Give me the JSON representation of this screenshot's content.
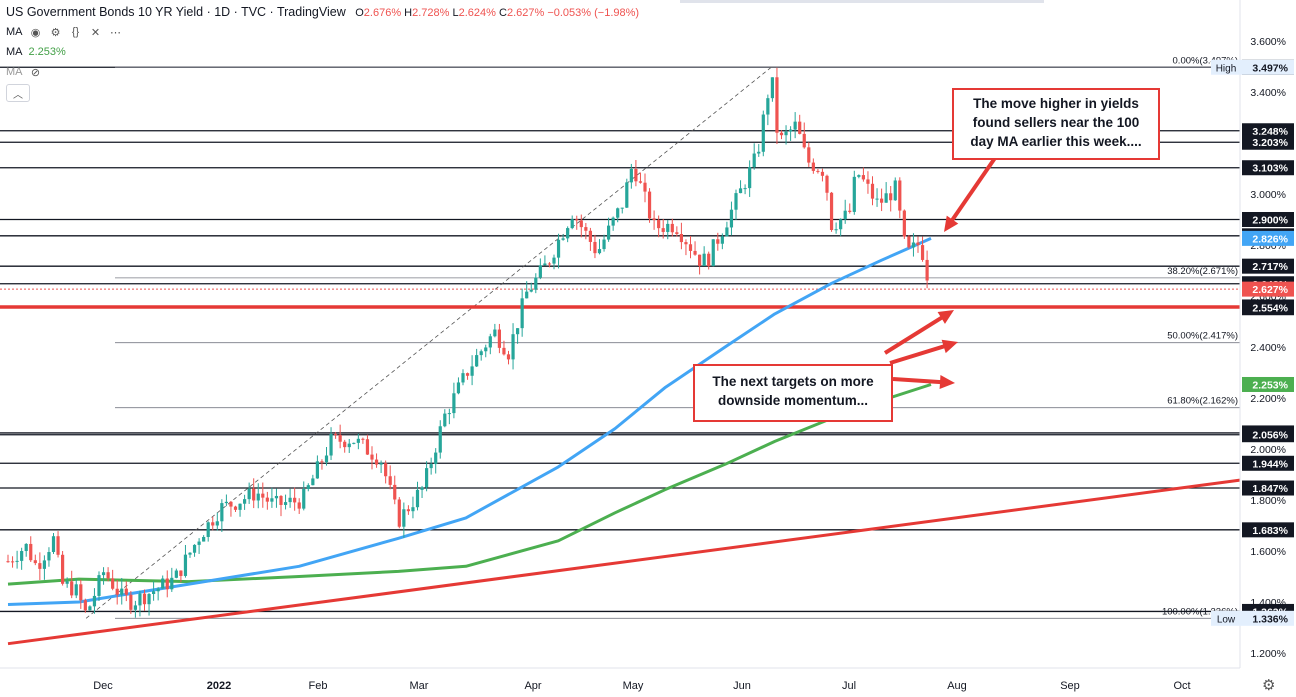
{
  "header": {
    "title": "US Government Bonds 10 YR Yield · 1D · TVC · TradingView",
    "ohlc": [
      {
        "k": "O",
        "v": "2.676%"
      },
      {
        "k": "H",
        "v": "2.728%"
      },
      {
        "k": "L",
        "v": "2.624%"
      },
      {
        "k": "C",
        "v": "2.627%"
      },
      {
        "k": "",
        "v": "−0.053%"
      },
      {
        "k": "",
        "v": "(−1.98%)"
      }
    ],
    "ma1_label": "MA",
    "ma2_label": "MA",
    "ma2_value": "2.253%",
    "ma3_label": "MA",
    "icons": [
      "eye-icon",
      "gear-icon",
      "braces-icon",
      "close-icon",
      "more-icon"
    ]
  },
  "callouts": {
    "top": "The move higher in yields found sellers near the 100 day MA earlier this week....",
    "bottom": "The next targets on more downside momentum..."
  },
  "colors": {
    "up": "#26a69a",
    "down": "#ef5350",
    "ma100": "#42a5f5",
    "ma200": "#4caf50",
    "trend": "#e53935",
    "annotation": "#e53935"
  },
  "chart_data": {
    "type": "candlestick",
    "title": "US Government Bonds 10 YR Yield",
    "ylim": [
      1.15,
      3.65
    ],
    "y_ticks": [
      "1.200%",
      "1.400%",
      "1.600%",
      "1.800%",
      "2.000%",
      "2.200%",
      "2.400%",
      "2.600%",
      "2.800%",
      "3.000%",
      "3.200%",
      "3.400%",
      "3.600%"
    ],
    "x_ticks": [
      "Dec",
      "2022",
      "Feb",
      "Mar",
      "Apr",
      "May",
      "Jun",
      "Jul",
      "Aug",
      "Sep",
      "Oct"
    ],
    "date_range": [
      "2021-11-11",
      "2022-10-31"
    ],
    "price_levels": [
      {
        "value": 3.497,
        "label": "3.497%",
        "style": "dark"
      },
      {
        "value": 3.248,
        "label": "3.248%",
        "style": "dark"
      },
      {
        "value": 3.203,
        "label": "3.203%",
        "style": "dark"
      },
      {
        "value": 3.103,
        "label": "3.103%",
        "style": "dark"
      },
      {
        "value": 2.9,
        "label": "2.900%",
        "style": "dark"
      },
      {
        "value": 2.836,
        "label": "2.836%",
        "style": "dark"
      },
      {
        "value": 2.717,
        "label": "2.717%",
        "style": "dark"
      },
      {
        "value": 2.648,
        "label": "2.648%",
        "style": "dark"
      },
      {
        "value": 2.557,
        "label": "2.557%",
        "style": "dark"
      },
      {
        "value": 2.554,
        "label": "2.554%",
        "style": "dark"
      },
      {
        "value": 2.063,
        "label": "2.063%",
        "style": "dark"
      },
      {
        "value": 2.056,
        "label": "2.056%",
        "style": "dark"
      },
      {
        "value": 1.944,
        "label": "1.944%",
        "style": "dark"
      },
      {
        "value": 1.847,
        "label": "1.847%",
        "style": "dark"
      },
      {
        "value": 1.683,
        "label": "1.683%",
        "style": "dark"
      },
      {
        "value": 1.363,
        "label": "1.363%",
        "style": "dark"
      }
    ],
    "badges": [
      {
        "value": 3.497,
        "label": "3.497%",
        "side": "High"
      },
      {
        "value": 2.826,
        "label": "2.826%",
        "color": "ma100"
      },
      {
        "value": 2.627,
        "label": "2.627%",
        "color": "down"
      },
      {
        "value": 2.253,
        "label": "2.253%",
        "color": "ma200"
      },
      {
        "value": 1.336,
        "label": "1.336%",
        "side": "Low"
      }
    ],
    "fib_levels": [
      {
        "value": 3.497,
        "label": "0.00%(3.497%)"
      },
      {
        "value": 2.671,
        "label": "38.20%(2.671%)"
      },
      {
        "value": 2.417,
        "label": "50.00%(2.417%)"
      },
      {
        "value": 2.162,
        "label": "61.80%(2.162%)"
      },
      {
        "value": 1.336,
        "label": "100.00%(1.336%)"
      }
    ],
    "support_line": 2.557,
    "current_close": 2.627,
    "trend_line": [
      [
        "2021-11-11",
        1.26
      ],
      [
        "2022-10-31",
        1.87
      ]
    ],
    "fib_diagonal": [
      [
        "2021-12-03",
        1.336
      ],
      [
        "2022-06-14",
        3.497
      ]
    ],
    "path": [
      [
        "2021-11-11",
        1.56
      ],
      [
        "2021-11-16",
        1.62
      ],
      [
        "2021-11-19",
        1.54
      ],
      [
        "2021-11-24",
        1.65
      ],
      [
        "2021-11-26",
        1.47
      ],
      [
        "2021-11-30",
        1.45
      ],
      [
        "2021-12-03",
        1.35
      ],
      [
        "2021-12-08",
        1.52
      ],
      [
        "2021-12-13",
        1.42
      ],
      [
        "2021-12-16",
        1.4
      ],
      [
        "2021-12-20",
        1.43
      ],
      [
        "2021-12-28",
        1.49
      ],
      [
        "2022-01-04",
        1.66
      ],
      [
        "2022-01-10",
        1.77
      ],
      [
        "2022-01-14",
        1.79
      ],
      [
        "2022-01-20",
        1.83
      ],
      [
        "2022-01-25",
        1.78
      ],
      [
        "2022-02-02",
        1.8
      ],
      [
        "2022-02-10",
        2.03
      ],
      [
        "2022-02-16",
        2.04
      ],
      [
        "2022-02-24",
        1.96
      ],
      [
        "2022-03-01",
        1.72
      ],
      [
        "2022-03-08",
        1.85
      ],
      [
        "2022-03-14",
        2.13
      ],
      [
        "2022-03-21",
        2.32
      ],
      [
        "2022-03-28",
        2.46
      ],
      [
        "2022-04-01",
        2.38
      ],
      [
        "2022-04-06",
        2.61
      ],
      [
        "2022-04-12",
        2.73
      ],
      [
        "2022-04-19",
        2.93
      ],
      [
        "2022-04-26",
        2.77
      ],
      [
        "2022-05-03",
        2.96
      ],
      [
        "2022-05-06",
        3.12
      ],
      [
        "2022-05-12",
        2.87
      ],
      [
        "2022-05-18",
        2.88
      ],
      [
        "2022-05-25",
        2.74
      ],
      [
        "2022-05-27",
        2.74
      ],
      [
        "2022-06-03",
        2.94
      ],
      [
        "2022-06-10",
        3.15
      ],
      [
        "2022-06-14",
        3.47
      ],
      [
        "2022-06-16",
        3.2
      ],
      [
        "2022-06-21",
        3.27
      ],
      [
        "2022-06-24",
        3.13
      ],
      [
        "2022-06-29",
        3.09
      ],
      [
        "2022-07-01",
        2.88
      ],
      [
        "2022-07-06",
        2.92
      ],
      [
        "2022-07-08",
        3.09
      ],
      [
        "2022-07-14",
        2.96
      ],
      [
        "2022-07-19",
        3.02
      ],
      [
        "2022-07-22",
        2.76
      ],
      [
        "2022-07-26",
        2.81
      ],
      [
        "2022-07-28",
        2.68
      ],
      [
        "2022-07-29",
        2.63
      ]
    ],
    "ma100": [
      [
        "2021-11-11",
        1.39
      ],
      [
        "2021-12-01",
        1.4
      ],
      [
        "2022-01-01",
        1.47
      ],
      [
        "2022-02-01",
        1.54
      ],
      [
        "2022-03-01",
        1.65
      ],
      [
        "2022-03-20",
        1.73
      ],
      [
        "2022-04-15",
        1.93
      ],
      [
        "2022-05-01",
        2.08
      ],
      [
        "2022-05-15",
        2.24
      ],
      [
        "2022-06-01",
        2.4
      ],
      [
        "2022-06-15",
        2.53
      ],
      [
        "2022-07-01",
        2.65
      ],
      [
        "2022-07-15",
        2.74
      ],
      [
        "2022-07-29",
        2.826
      ]
    ],
    "ma200": [
      [
        "2021-11-11",
        1.47
      ],
      [
        "2021-12-01",
        1.49
      ],
      [
        "2022-01-01",
        1.48
      ],
      [
        "2022-02-01",
        1.5
      ],
      [
        "2022-03-01",
        1.52
      ],
      [
        "2022-03-20",
        1.54
      ],
      [
        "2022-04-15",
        1.64
      ],
      [
        "2022-05-01",
        1.75
      ],
      [
        "2022-05-15",
        1.84
      ],
      [
        "2022-06-01",
        1.94
      ],
      [
        "2022-06-15",
        2.03
      ],
      [
        "2022-07-01",
        2.12
      ],
      [
        "2022-07-15",
        2.19
      ],
      [
        "2022-07-29",
        2.253
      ]
    ]
  }
}
